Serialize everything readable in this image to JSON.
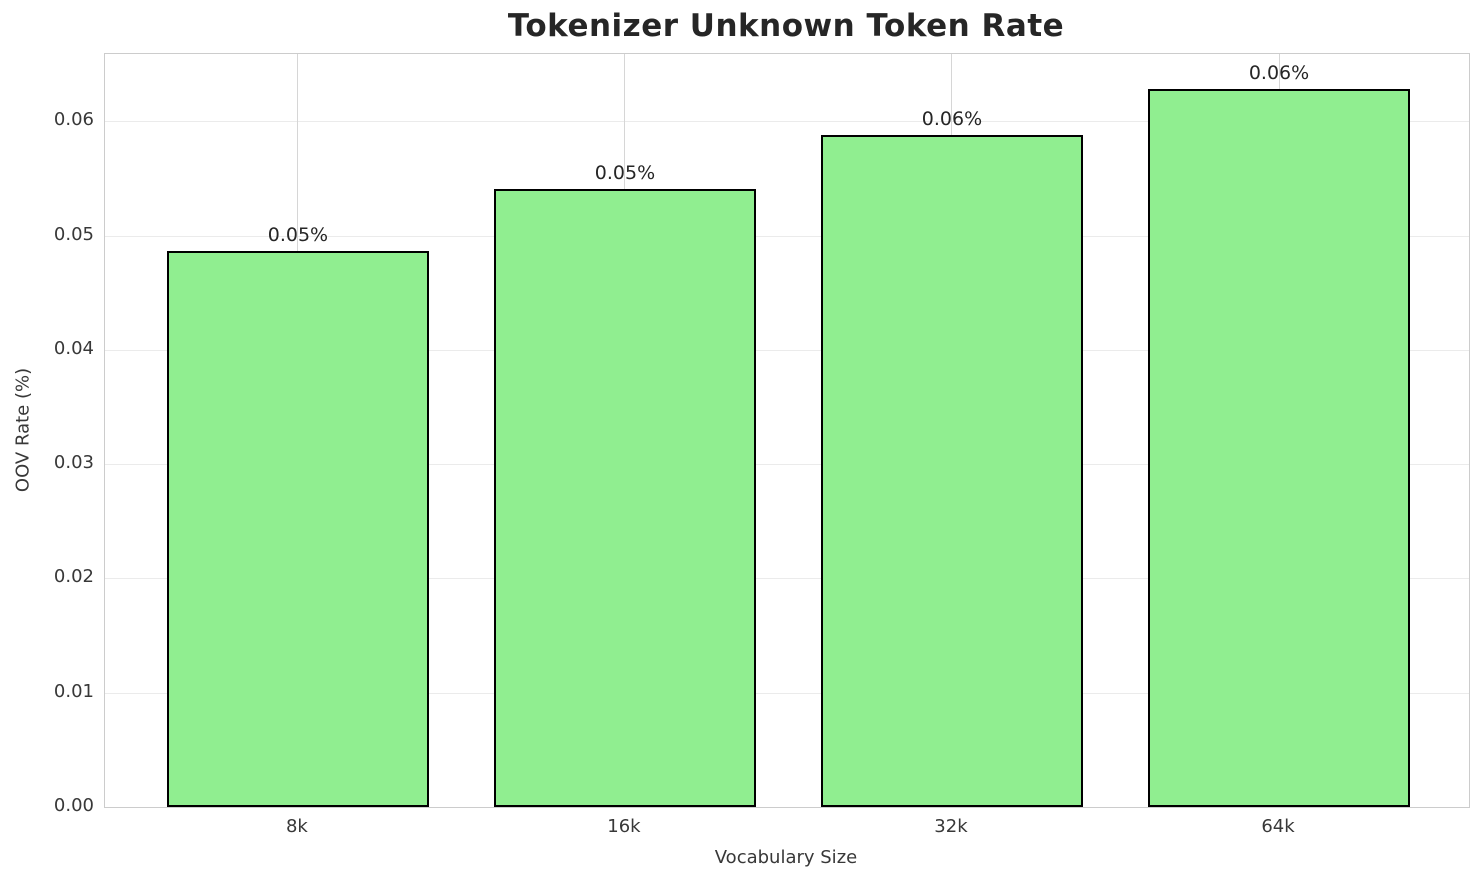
{
  "chart_data": {
    "type": "bar",
    "title": "Tokenizer Unknown Token Rate",
    "xlabel": "Vocabulary Size",
    "ylabel": "OOV Rate (%)",
    "categories": [
      "8k",
      "16k",
      "32k",
      "64k"
    ],
    "values": [
      0.0487,
      0.0541,
      0.0588,
      0.0628
    ],
    "bar_labels": [
      "0.05%",
      "0.05%",
      "0.06%",
      "0.06%"
    ],
    "ytick_labels": [
      "0.00",
      "0.01",
      "0.02",
      "0.03",
      "0.04",
      "0.05",
      "0.06"
    ],
    "yticks": [
      0.0,
      0.01,
      0.02,
      0.03,
      0.04,
      0.05,
      0.06
    ],
    "ylim": [
      0,
      0.0659
    ],
    "grid": true,
    "legend_position": "none",
    "colors": {
      "bar_fill": "#90EE90",
      "bar_edge": "#000000",
      "grid_horizontal": "#ebebeb",
      "grid_vertical": "#d6d6d6",
      "spine": "#cccccc",
      "tick_text": "#383838",
      "title_text": "#262626"
    }
  }
}
